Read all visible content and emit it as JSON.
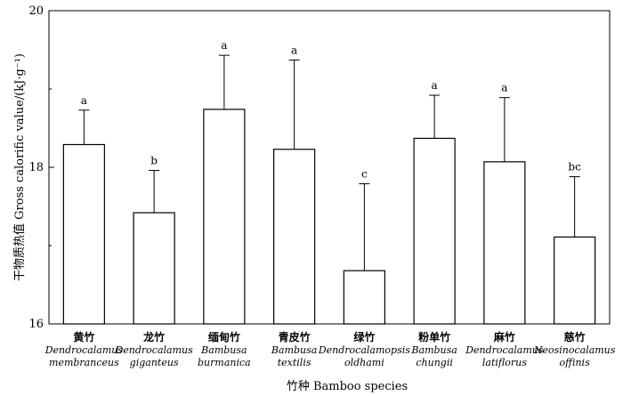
{
  "chart_data": {
    "type": "bar",
    "title": "",
    "xlabel": "竹种 Bamboo species",
    "ylabel": "干物质热值 Gross calorific value/(kJ·g⁻¹)",
    "ylim": [
      16,
      20
    ],
    "yticks": [
      "16",
      "18",
      "20"
    ],
    "grid": false,
    "legend": "none",
    "categories": [
      {
        "cn": "黄竹",
        "genus": "Dendrocalamus",
        "species": "membranceus"
      },
      {
        "cn": "龙竹",
        "genus": "Dendrocalamus",
        "species": "giganteus"
      },
      {
        "cn": "缅甸竹",
        "genus": "Bambusa",
        "species": "burmanica"
      },
      {
        "cn": "青皮竹",
        "genus": "Bambusa",
        "species": "textilis"
      },
      {
        "cn": "绿竹",
        "genus": "Dendrocalamopsis",
        "species": "oldhami"
      },
      {
        "cn": "粉单竹",
        "genus": "Bambusa",
        "species": "chungii"
      },
      {
        "cn": "麻竹",
        "genus": "Dendrocalamus",
        "species": "latiflorus"
      },
      {
        "cn": "慈竹",
        "genus": "Neosinocalamus",
        "species": "offinis"
      }
    ],
    "values": [
      18.29,
      17.42,
      18.74,
      18.23,
      16.68,
      18.37,
      18.07,
      17.11
    ],
    "error_upper": [
      0.44,
      0.54,
      0.69,
      1.14,
      1.11,
      0.55,
      0.82,
      0.77
    ],
    "significance": [
      "a",
      "b",
      "a",
      "a",
      "c",
      "a",
      "a",
      "bc"
    ],
    "colors": {
      "bar_fill": "#ffffff",
      "stroke": "#000000"
    }
  }
}
